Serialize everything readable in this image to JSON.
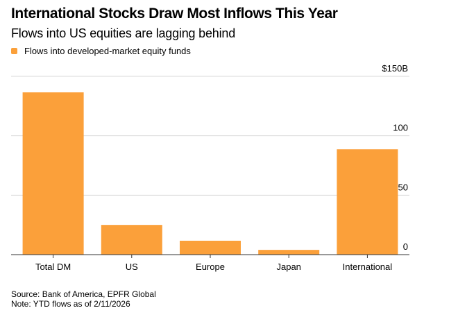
{
  "header": {
    "title": "International Stocks Draw Most Inflows This Year",
    "subtitle": "Flows into US equities are lagging behind"
  },
  "legend": {
    "label": "Flows into developed-market equity funds",
    "color": "#FBA03A"
  },
  "footer": {
    "source": "Source: Bank of America, EPFR Global",
    "note": "Note: YTD flows as of 2/11/2026"
  },
  "chart_data": {
    "type": "bar",
    "title": "International Stocks Draw Most Inflows This Year",
    "subtitle": "Flows into US equities are lagging behind",
    "xlabel": "",
    "ylabel": "",
    "categories": [
      "Total DM",
      "US",
      "Europe",
      "Japan",
      "International"
    ],
    "series": [
      {
        "name": "Flows into developed-market equity funds",
        "values": [
          136.5,
          25,
          11.7,
          4,
          88.6
        ],
        "color": "#FBA03A"
      }
    ],
    "ylim": [
      0,
      150
    ],
    "yticks": [
      0,
      50,
      100,
      150
    ],
    "ytick_labels": [
      "0",
      "50",
      "100",
      "$150B"
    ],
    "y_axis_side": "right",
    "grid": true,
    "legend_position": "top-left"
  }
}
